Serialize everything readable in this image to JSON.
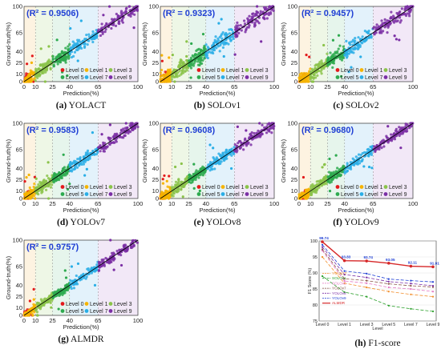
{
  "chart_data": [
    {
      "type": "scatter",
      "r2_label": "(R² = 0.9506)",
      "caption_letter": "(a)",
      "caption_text": "YOLACT"
    },
    {
      "type": "scatter",
      "r2_label": "(R² = 0.9323)",
      "caption_letter": "(b)",
      "caption_text": "SOLOv1"
    },
    {
      "type": "scatter",
      "r2_label": "(R² = 0.9457)",
      "caption_letter": "(c)",
      "caption_text": "SOLOv2"
    },
    {
      "type": "scatter",
      "r2_label": "(R² = 0.9583)",
      "caption_letter": "(d)",
      "caption_text": "YOLOv7"
    },
    {
      "type": "scatter",
      "r2_label": "(R² = 0.9608)",
      "caption_letter": "(e)",
      "caption_text": "YOLOv8"
    },
    {
      "type": "scatter",
      "r2_label": "(R² = 0.9680)",
      "caption_letter": "(f)",
      "caption_text": "YOLOv9"
    },
    {
      "type": "scatter",
      "r2_label": "(R² = 0.9757)",
      "caption_letter": "(g)",
      "caption_text": "ALMDR"
    }
  ],
  "scatter_axes": {
    "xlabel": "Prediction(%)",
    "ylabel": "Ground-truth(%)",
    "xlim": [
      0,
      100
    ],
    "ylim": [
      0,
      100
    ],
    "x_ticks": [
      0,
      10,
      25,
      40,
      65,
      100
    ],
    "y_ticks": [
      0,
      10,
      25,
      40,
      65,
      100
    ],
    "bands": [
      0,
      10,
      25,
      40,
      65,
      100
    ],
    "band_colors": [
      "#fdf3e1",
      "#eef7e6",
      "#e6f5ec",
      "#e3f2fb",
      "#f2e8f7"
    ],
    "levels": [
      {
        "name": "Level 0",
        "color": "#e31a1c"
      },
      {
        "name": "Level 1",
        "color": "#f5b400"
      },
      {
        "name": "Level 3",
        "color": "#8bc34a"
      },
      {
        "name": "Level 5",
        "color": "#2eaa4f"
      },
      {
        "name": "Level 7",
        "color": "#2aaee6"
      },
      {
        "name": "Level 9",
        "color": "#7b2fa5"
      }
    ],
    "r2_color": "#1f3fd4"
  },
  "f1_chart": {
    "type": "line",
    "caption_letter": "(h)",
    "caption_text": "F1-score",
    "xlabel": "Level",
    "ylabel": "F1 Score (%)",
    "ylim": [
      75,
      100
    ],
    "y_ticks": [
      75,
      80,
      85,
      90,
      95,
      100
    ],
    "categories": [
      "Level 0",
      "Level 1",
      "Level 3",
      "Level 5",
      "Level 7",
      "Level 9"
    ],
    "series": [
      {
        "name": "YOLACT",
        "color": "#f28e2b",
        "dash": "4,2",
        "values": [
          95.0,
          86.8,
          85.5,
          84.2,
          83.3,
          82.6
        ]
      },
      {
        "name": "SOLOv1",
        "color": "#2ca02c",
        "dash": "4,2",
        "values": [
          89.0,
          84.0,
          82.6,
          79.8,
          78.8,
          78.0
        ]
      },
      {
        "name": "SOLOv2",
        "color": "#e377c2",
        "dash": "4,2",
        "values": [
          97.0,
          87.5,
          86.8,
          85.5,
          85.0,
          84.2
        ]
      },
      {
        "name": "YOLOv7",
        "color": "#8c564b",
        "dash": "4,2",
        "values": [
          97.4,
          88.2,
          87.6,
          86.6,
          86.0,
          85.6
        ]
      },
      {
        "name": "YOLOv8",
        "color": "#7b2fa5",
        "dash": "4,2",
        "values": [
          98.1,
          89.5,
          88.6,
          87.3,
          86.7,
          86.0
        ]
      },
      {
        "name": "YOLOv9",
        "color": "#1f3fd4",
        "dash": "4,2",
        "values": [
          98.8,
          90.6,
          89.8,
          88.1,
          87.6,
          87.2
        ]
      },
      {
        "name": "ALMDR",
        "color": "#d62728",
        "dash": "",
        "values": [
          99.74,
          93.83,
          93.74,
          93.05,
          92.11,
          91.91
        ]
      }
    ],
    "point_labels": [
      "99.74",
      "93.83",
      "93.74",
      "93.05",
      "92.11",
      "91.91"
    ]
  }
}
